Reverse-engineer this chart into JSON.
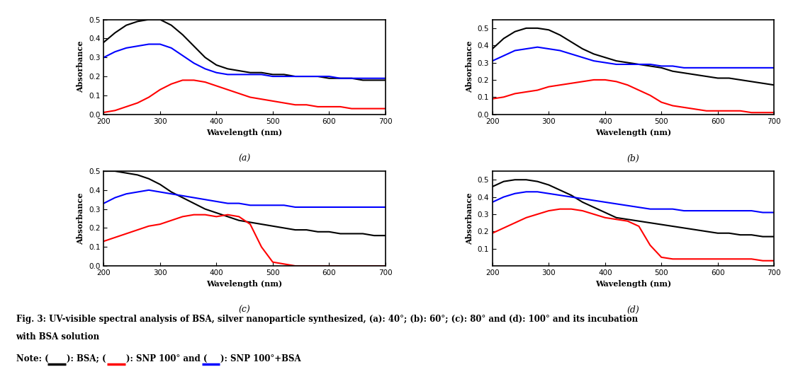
{
  "wavelengths": [
    200,
    220,
    240,
    260,
    280,
    300,
    320,
    340,
    360,
    380,
    400,
    420,
    440,
    460,
    480,
    500,
    520,
    540,
    560,
    580,
    600,
    620,
    640,
    660,
    680,
    700
  ],
  "panel_a": {
    "black": [
      0.38,
      0.43,
      0.47,
      0.49,
      0.5,
      0.5,
      0.47,
      0.42,
      0.36,
      0.3,
      0.26,
      0.24,
      0.23,
      0.22,
      0.22,
      0.21,
      0.21,
      0.2,
      0.2,
      0.2,
      0.19,
      0.19,
      0.19,
      0.18,
      0.18,
      0.18
    ],
    "blue": [
      0.3,
      0.33,
      0.35,
      0.36,
      0.37,
      0.37,
      0.35,
      0.31,
      0.27,
      0.24,
      0.22,
      0.21,
      0.21,
      0.21,
      0.21,
      0.2,
      0.2,
      0.2,
      0.2,
      0.2,
      0.2,
      0.19,
      0.19,
      0.19,
      0.19,
      0.19
    ],
    "red": [
      0.01,
      0.02,
      0.04,
      0.06,
      0.09,
      0.13,
      0.16,
      0.18,
      0.18,
      0.17,
      0.15,
      0.13,
      0.11,
      0.09,
      0.08,
      0.07,
      0.06,
      0.05,
      0.05,
      0.04,
      0.04,
      0.04,
      0.03,
      0.03,
      0.03,
      0.03
    ],
    "ylim": [
      0.0,
      0.5
    ],
    "yticks": [
      0.0,
      0.1,
      0.2,
      0.3,
      0.4,
      0.5
    ],
    "label": "(a)"
  },
  "panel_b": {
    "black": [
      0.38,
      0.44,
      0.48,
      0.5,
      0.5,
      0.49,
      0.46,
      0.42,
      0.38,
      0.35,
      0.33,
      0.31,
      0.3,
      0.29,
      0.28,
      0.27,
      0.25,
      0.24,
      0.23,
      0.22,
      0.21,
      0.21,
      0.2,
      0.19,
      0.18,
      0.17
    ],
    "blue": [
      0.31,
      0.34,
      0.37,
      0.38,
      0.39,
      0.38,
      0.37,
      0.35,
      0.33,
      0.31,
      0.3,
      0.29,
      0.29,
      0.29,
      0.29,
      0.28,
      0.28,
      0.27,
      0.27,
      0.27,
      0.27,
      0.27,
      0.27,
      0.27,
      0.27,
      0.27
    ],
    "red": [
      0.09,
      0.1,
      0.12,
      0.13,
      0.14,
      0.16,
      0.17,
      0.18,
      0.19,
      0.2,
      0.2,
      0.19,
      0.17,
      0.14,
      0.11,
      0.07,
      0.05,
      0.04,
      0.03,
      0.02,
      0.02,
      0.02,
      0.02,
      0.01,
      0.01,
      0.01
    ],
    "ylim": [
      0.0,
      0.55
    ],
    "yticks": [
      0.0,
      0.1,
      0.2,
      0.3,
      0.4,
      0.5
    ],
    "label": "(b)"
  },
  "panel_c": {
    "black": [
      0.5,
      0.5,
      0.49,
      0.48,
      0.46,
      0.43,
      0.39,
      0.36,
      0.33,
      0.3,
      0.28,
      0.26,
      0.24,
      0.23,
      0.22,
      0.21,
      0.2,
      0.19,
      0.19,
      0.18,
      0.18,
      0.17,
      0.17,
      0.17,
      0.16,
      0.16
    ],
    "blue": [
      0.33,
      0.36,
      0.38,
      0.39,
      0.4,
      0.39,
      0.38,
      0.37,
      0.36,
      0.35,
      0.34,
      0.33,
      0.33,
      0.32,
      0.32,
      0.32,
      0.32,
      0.31,
      0.31,
      0.31,
      0.31,
      0.31,
      0.31,
      0.31,
      0.31,
      0.31
    ],
    "red": [
      0.13,
      0.15,
      0.17,
      0.19,
      0.21,
      0.22,
      0.24,
      0.26,
      0.27,
      0.27,
      0.26,
      0.27,
      0.26,
      0.22,
      0.1,
      0.02,
      0.01,
      0.0,
      0.0,
      0.0,
      0.0,
      0.0,
      0.0,
      0.0,
      0.0,
      0.0
    ],
    "ylim": [
      0.0,
      0.5
    ],
    "yticks": [
      0.0,
      0.1,
      0.2,
      0.3,
      0.4,
      0.5
    ],
    "label": "(c)"
  },
  "panel_d": {
    "black": [
      0.46,
      0.49,
      0.5,
      0.5,
      0.49,
      0.47,
      0.44,
      0.41,
      0.37,
      0.34,
      0.31,
      0.28,
      0.27,
      0.26,
      0.25,
      0.24,
      0.23,
      0.22,
      0.21,
      0.2,
      0.19,
      0.19,
      0.18,
      0.18,
      0.17,
      0.17
    ],
    "blue": [
      0.37,
      0.4,
      0.42,
      0.43,
      0.43,
      0.42,
      0.41,
      0.4,
      0.39,
      0.38,
      0.37,
      0.36,
      0.35,
      0.34,
      0.33,
      0.33,
      0.33,
      0.32,
      0.32,
      0.32,
      0.32,
      0.32,
      0.32,
      0.32,
      0.31,
      0.31
    ],
    "red": [
      0.19,
      0.22,
      0.25,
      0.28,
      0.3,
      0.32,
      0.33,
      0.33,
      0.32,
      0.3,
      0.28,
      0.27,
      0.26,
      0.23,
      0.12,
      0.05,
      0.04,
      0.04,
      0.04,
      0.04,
      0.04,
      0.04,
      0.04,
      0.04,
      0.03,
      0.03
    ],
    "ylim": [
      0.0,
      0.55
    ],
    "yticks": [
      0.1,
      0.2,
      0.3,
      0.4,
      0.5
    ],
    "label": "(d)"
  },
  "xlabel": "Wavelength (nm)",
  "ylabel": "Absorbance",
  "xlim": [
    200,
    700
  ],
  "xticks": [
    200,
    300,
    400,
    500,
    600,
    700
  ],
  "line_width": 1.5,
  "fig_caption_line1": "Fig. 3: UV-visible spectral analysis of BSA, silver nanoparticle synthesized, (a): 40°; (b): 60°; (c): 80° and (d): 100° and its incubation",
  "fig_caption_line2": "with BSA solution",
  "fig_note_prefix": "Note: ",
  "fig_note_bsa": "): BSA; (",
  "fig_note_snp": "): SNP 100° and (",
  "fig_note_snpbsa": "): SNP 100°+BSA",
  "background": "#ffffff"
}
